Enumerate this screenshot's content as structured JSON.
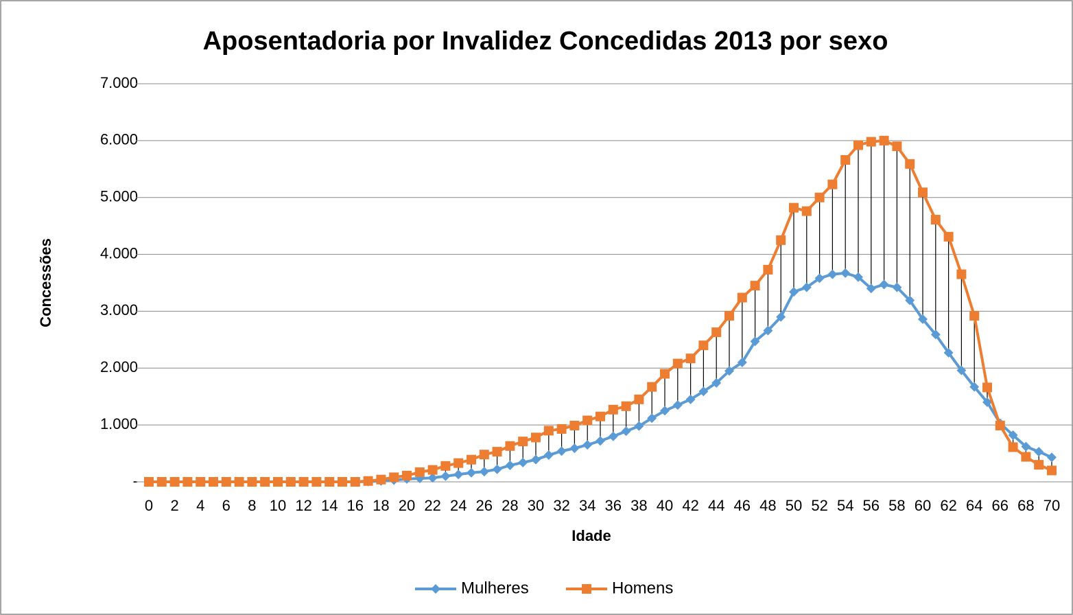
{
  "chart_data": {
    "type": "line",
    "title": "Aposentadoria por Invalidez Concedidas 2013 por sexo",
    "x_label": "Idade",
    "y_label": "Concessões",
    "x": [
      0,
      1,
      2,
      3,
      4,
      5,
      6,
      7,
      8,
      9,
      10,
      11,
      12,
      13,
      14,
      15,
      16,
      17,
      18,
      19,
      20,
      21,
      22,
      23,
      24,
      25,
      26,
      27,
      28,
      29,
      30,
      31,
      32,
      33,
      34,
      35,
      36,
      37,
      38,
      39,
      40,
      41,
      42,
      43,
      44,
      45,
      46,
      47,
      48,
      49,
      50,
      51,
      52,
      53,
      54,
      55,
      56,
      57,
      58,
      59,
      60,
      61,
      62,
      63,
      64,
      65,
      66,
      67,
      68,
      69,
      70
    ],
    "xlim": [
      0,
      70
    ],
    "xticks": [
      0,
      2,
      4,
      6,
      8,
      10,
      12,
      14,
      16,
      18,
      20,
      22,
      24,
      26,
      28,
      30,
      32,
      34,
      36,
      38,
      40,
      42,
      44,
      46,
      48,
      50,
      52,
      54,
      56,
      58,
      60,
      62,
      64,
      66,
      68,
      70
    ],
    "ylim": [
      0,
      7000
    ],
    "yticks": [
      {
        "value": 0,
        "label": "-"
      },
      {
        "value": 1000,
        "label": "1.000"
      },
      {
        "value": 2000,
        "label": "2.000"
      },
      {
        "value": 3000,
        "label": "3.000"
      },
      {
        "value": 4000,
        "label": "4.000"
      },
      {
        "value": 5000,
        "label": "5.000"
      },
      {
        "value": 6000,
        "label": "6.000"
      },
      {
        "value": 7000,
        "label": "7.000"
      }
    ],
    "grid": true,
    "high_low_lines": true,
    "legend": "bottom",
    "series": [
      {
        "name": "Mulheres",
        "color": "#5b9bd5",
        "marker": "diamond",
        "values": [
          0,
          0,
          0,
          0,
          0,
          0,
          0,
          0,
          0,
          0,
          0,
          0,
          0,
          0,
          0,
          0,
          0,
          5,
          15,
          30,
          50,
          60,
          70,
          100,
          130,
          160,
          180,
          220,
          290,
          340,
          390,
          470,
          540,
          590,
          650,
          720,
          800,
          890,
          980,
          1120,
          1250,
          1350,
          1450,
          1590,
          1740,
          1950,
          2100,
          2470,
          2660,
          2900,
          3340,
          3420,
          3580,
          3650,
          3670,
          3600,
          3400,
          3470,
          3420,
          3190,
          2860,
          2590,
          2270,
          1960,
          1670,
          1400,
          1030,
          820,
          620,
          530,
          430
        ]
      },
      {
        "name": "Homens",
        "color": "#ed7d31",
        "marker": "square",
        "values": [
          0,
          0,
          0,
          0,
          0,
          0,
          0,
          0,
          0,
          0,
          0,
          0,
          0,
          0,
          0,
          0,
          0,
          15,
          40,
          80,
          110,
          170,
          210,
          280,
          330,
          390,
          480,
          530,
          630,
          710,
          780,
          900,
          930,
          990,
          1080,
          1150,
          1270,
          1330,
          1450,
          1670,
          1900,
          2080,
          2170,
          2400,
          2630,
          2920,
          3240,
          3450,
          3730,
          4250,
          4820,
          4760,
          5000,
          5230,
          5660,
          5920,
          5980,
          6000,
          5900,
          5590,
          5090,
          4610,
          4310,
          3650,
          2920,
          1660,
          990,
          610,
          440,
          300,
          200
        ]
      }
    ]
  }
}
